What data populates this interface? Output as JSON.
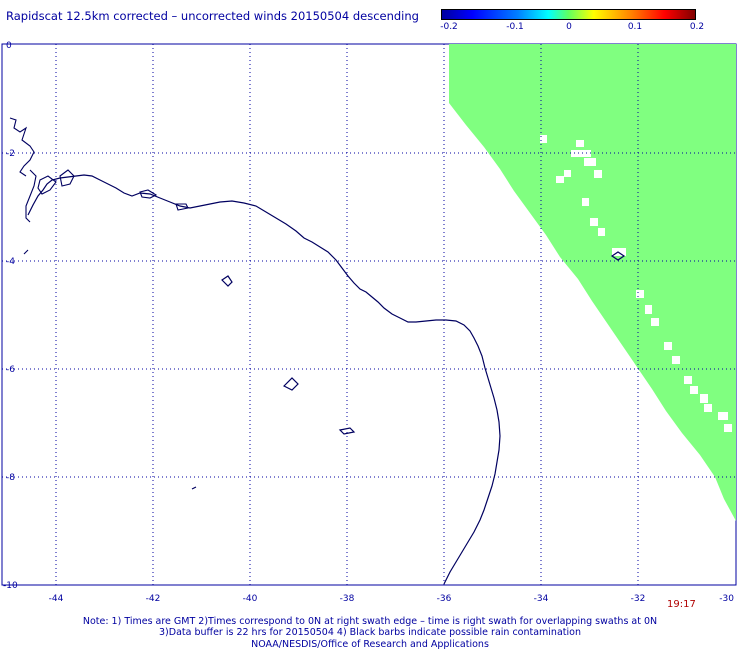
{
  "title": "Rapidscat 12.5km corrected – uncorrected winds 20150504 descending",
  "colorbar": {
    "ticks": [
      "-0.2",
      "-0.1",
      "0",
      "0.1",
      "0.2"
    ],
    "values": [
      -0.2,
      -0.1,
      0,
      0.1,
      0.2
    ],
    "colors": [
      "#0000a0",
      "#00ffff",
      "#60ff60",
      "#ffff00",
      "#800000"
    ]
  },
  "map": {
    "lon_range": [
      -45,
      -30
    ],
    "lat_range": [
      -10,
      0
    ],
    "lon_ticks": [
      "-44",
      "-42",
      "-40",
      "-38",
      "-36",
      "-34",
      "-32",
      "-30"
    ],
    "lat_ticks": [
      "0",
      "-2",
      "-4",
      "-6",
      "-8",
      "-10"
    ],
    "swath_color": "#80ff80",
    "coast_color": "#000060",
    "grid": "dotted"
  },
  "timestamp": "19:17",
  "notes": [
    "Note: 1) Times are GMT 2)Times correspond to 0N at right swath edge – time is right swath for overlapping swaths at 0N",
    "3)Data buffer is 22 hrs for 20150504 4) Black barbs indicate possible rain contamination",
    "NOAA/NESDIS/Office of Research and Applications"
  ]
}
